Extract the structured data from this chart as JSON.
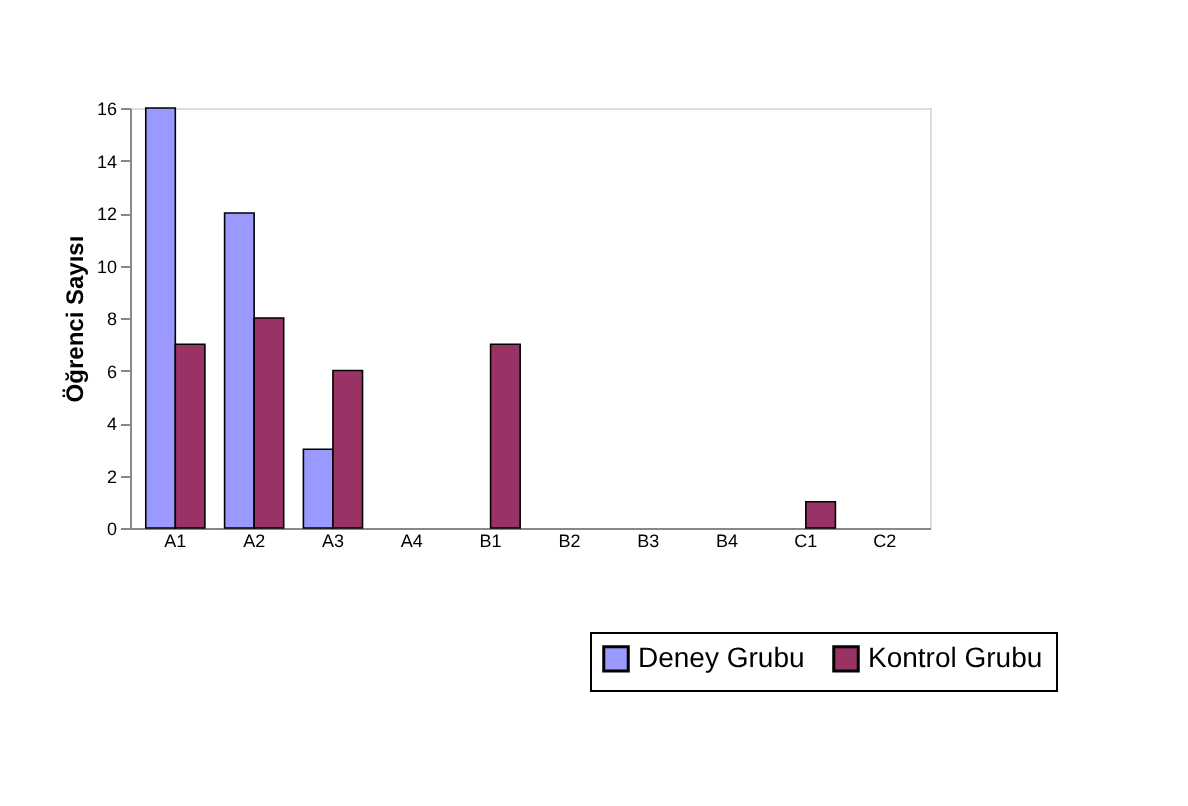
{
  "chart_data": {
    "type": "bar",
    "ylabel": "Öğrenci Sayısı",
    "categories": [
      "A1",
      "A2",
      "A3",
      "A4",
      "B1",
      "B2",
      "B3",
      "B4",
      "C1",
      "C2"
    ],
    "series": [
      {
        "name": "Deney Grubu",
        "color": "#9999ff",
        "values": [
          16,
          12,
          3,
          0,
          0,
          0,
          0,
          0,
          0,
          0
        ]
      },
      {
        "name": "Kontrol Grubu",
        "color": "#993366",
        "values": [
          7,
          8,
          6,
          0,
          7,
          0,
          0,
          0,
          1,
          0
        ]
      }
    ],
    "ylim": [
      0,
      16
    ],
    "yticks": [
      0,
      2,
      4,
      6,
      8,
      10,
      12,
      14,
      16
    ],
    "grid": false,
    "legend": "bottom right"
  }
}
